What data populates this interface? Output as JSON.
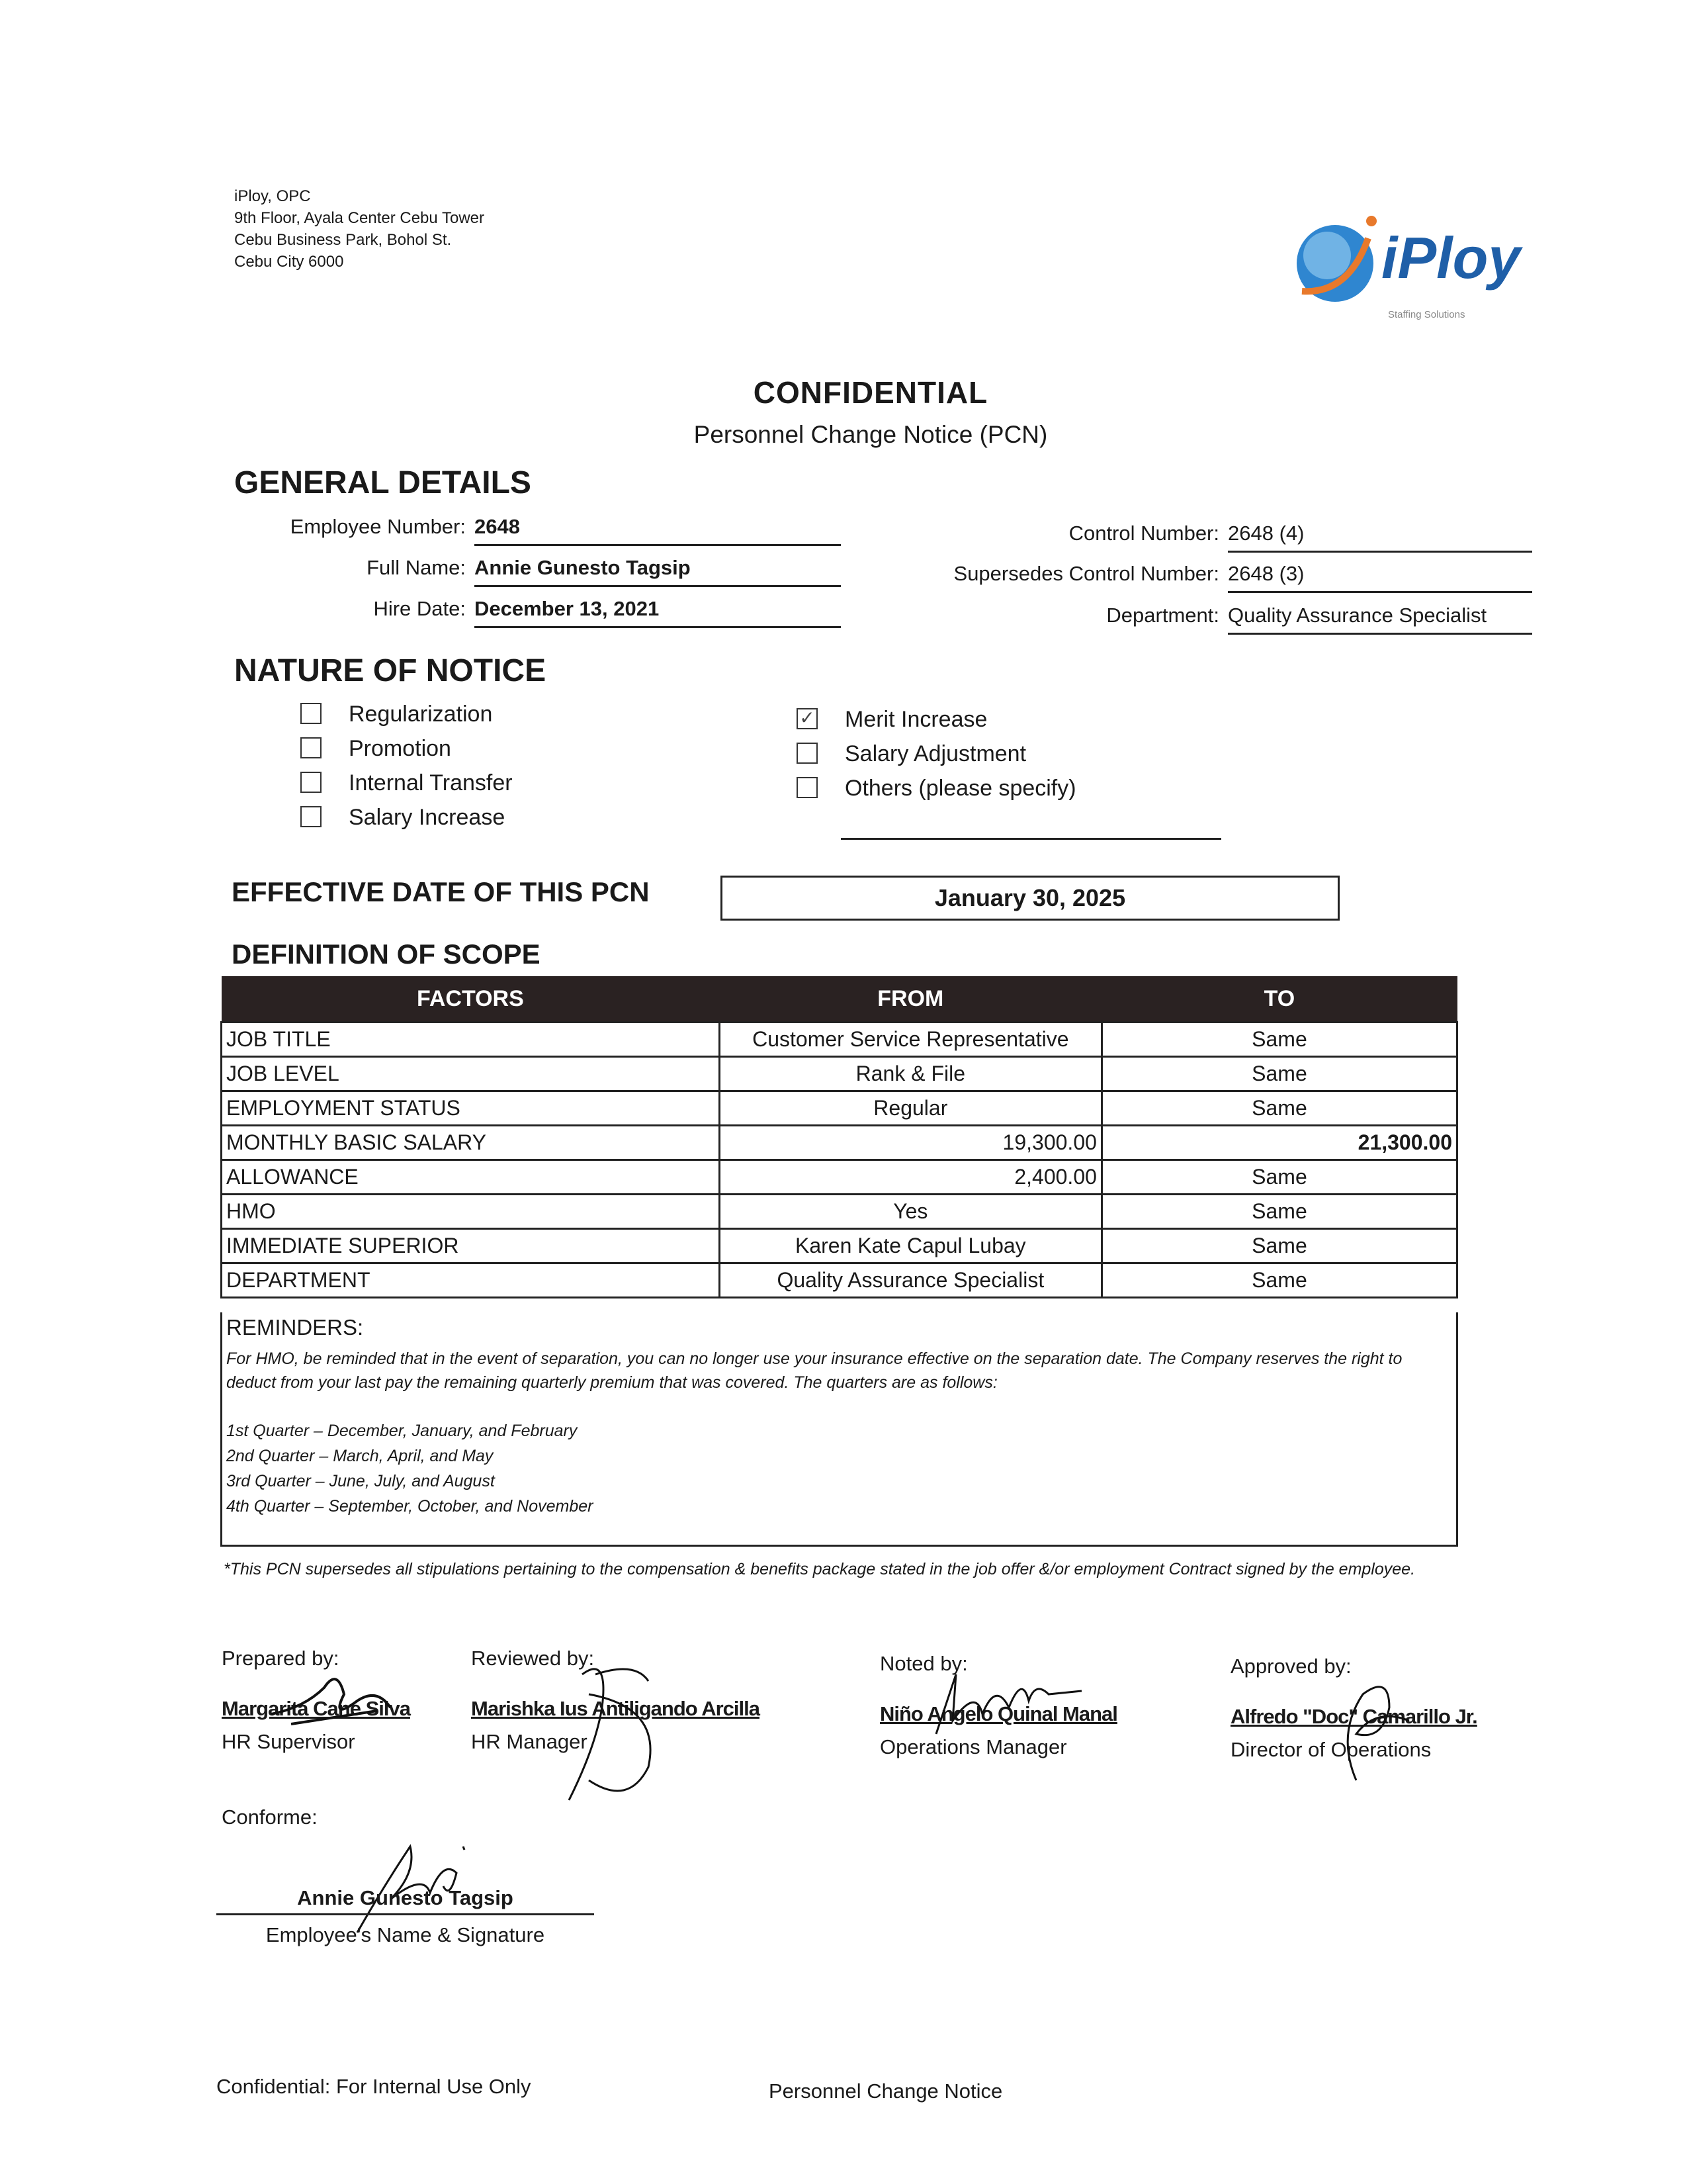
{
  "company": {
    "address_lines": [
      "iPloy, OPC",
      "9th Floor, Ayala Center Cebu Tower",
      "Cebu Business Park, Bohol St.",
      "Cebu City 6000"
    ],
    "logo_text": "iPloy",
    "logo_tagline": "Staffing Solutions",
    "brand_colors": {
      "blue": "#1f5fa8",
      "orange": "#e8792b"
    }
  },
  "header": {
    "title": "CONFIDENTIAL",
    "subtitle": "Personnel Change Notice (PCN)"
  },
  "general_details": {
    "heading": "GENERAL DETAILS",
    "left": [
      {
        "label": "Employee Number:",
        "value": "2648"
      },
      {
        "label": "Full Name:",
        "value": "Annie Gunesto Tagsip"
      },
      {
        "label": "Hire Date:",
        "value": "December 13, 2021"
      }
    ],
    "right": [
      {
        "label": "Control Number:",
        "value": "2648 (4)"
      },
      {
        "label": "Supersedes Control Number:",
        "value": "2648 (3)"
      },
      {
        "label": "Department:",
        "value": "Quality Assurance Specialist"
      }
    ]
  },
  "nature_of_notice": {
    "heading": "NATURE OF NOTICE",
    "left": [
      {
        "label": "Regularization",
        "checked": false
      },
      {
        "label": "Promotion",
        "checked": false
      },
      {
        "label": "Internal Transfer",
        "checked": false
      },
      {
        "label": "Salary Increase",
        "checked": false
      }
    ],
    "right": [
      {
        "label": "Merit Increase",
        "checked": true
      },
      {
        "label": "Salary Adjustment",
        "checked": false
      },
      {
        "label": "Others (please specify)",
        "checked": false
      }
    ],
    "check_mark": "✓"
  },
  "effective_date": {
    "label": "EFFECTIVE DATE OF THIS PCN",
    "value": "January 30, 2025"
  },
  "scope": {
    "heading": "DEFINITION OF SCOPE",
    "columns": [
      "FACTORS",
      "FROM",
      "TO"
    ],
    "rows": [
      {
        "factor": "JOB TITLE",
        "from": "Customer Service Representative",
        "to": "Same"
      },
      {
        "factor": "JOB LEVEL",
        "from": "Rank & File",
        "to": "Same"
      },
      {
        "factor": "EMPLOYMENT STATUS",
        "from": "Regular",
        "to": "Same"
      },
      {
        "factor": "MONTHLY BASIC SALARY",
        "from": "19,300.00",
        "to": "21,300.00"
      },
      {
        "factor": "ALLOWANCE",
        "from": "2,400.00",
        "to": "Same"
      },
      {
        "factor": "HMO",
        "from": "Yes",
        "to": "Same"
      },
      {
        "factor": "IMMEDIATE SUPERIOR",
        "from": "Karen Kate Capul Lubay",
        "to": "Same"
      },
      {
        "factor": "DEPARTMENT",
        "from": "Quality Assurance Specialist",
        "to": "Same"
      }
    ]
  },
  "reminders": {
    "title": "REMINDERS:",
    "paragraph": "For HMO, be reminded that in the event of separation, you can no longer use your insurance effective on the separation date.  The Company reserves the right to deduct from your last pay the remaining quarterly premium that was covered.  The quarters are as follows:",
    "quarters": [
      "1st Quarter – December, January, and February",
      "2nd Quarter – March, April, and May",
      "3rd Quarter – June, July, and August",
      "4th Quarter – September, October, and November"
    ]
  },
  "footnote": "*This PCN supersedes all stipulations pertaining to the compensation & benefits package stated in the job offer &/or employment Contract signed by the employee.",
  "signatories": [
    {
      "role": "Prepared by:",
      "name": "Margarita Cane Silva",
      "title": "HR Supervisor"
    },
    {
      "role": "Reviewed by:",
      "name": "Marishka Ius Antiligando Arcilla",
      "title": "HR Manager"
    },
    {
      "role": "Noted by:",
      "name": "Niño Angelo Quinal Manal",
      "title": "Operations Manager"
    },
    {
      "role": "Approved by:",
      "name": "Alfredo \"Doc\" Camarillo Jr.",
      "title": "Director of Operations"
    }
  ],
  "conforme": {
    "label": "Conforme:",
    "name": "Annie Gunesto Tagsip",
    "caption": "Employee's Name & Signature"
  },
  "footer": {
    "left": "Confidential: For Internal Use Only",
    "center": "Personnel Change Notice"
  }
}
